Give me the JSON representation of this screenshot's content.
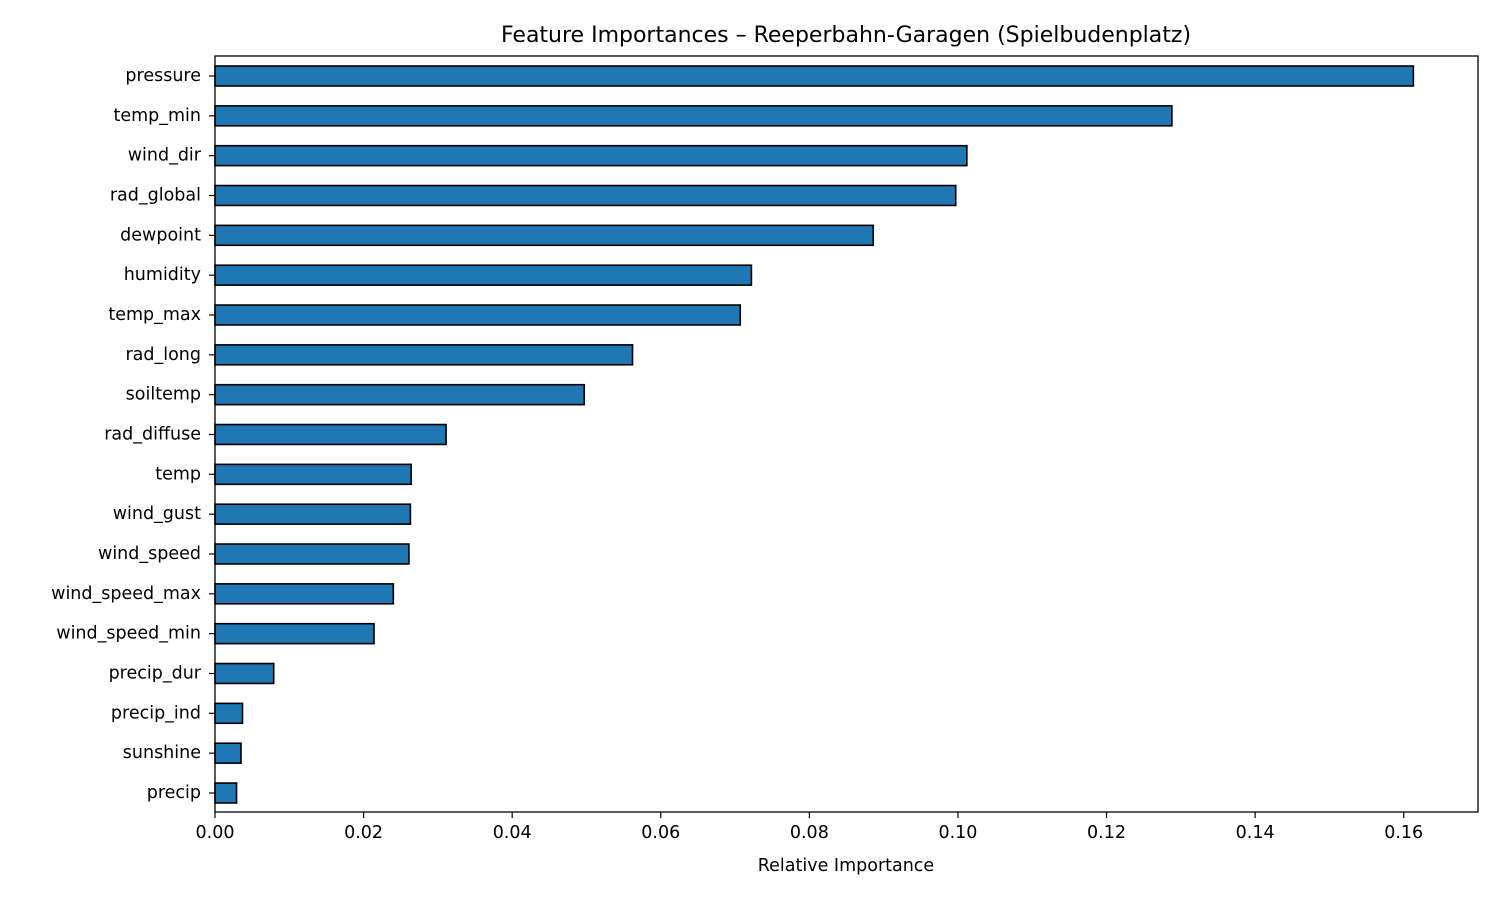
{
  "chart_data": {
    "type": "bar",
    "orientation": "horizontal",
    "title": "Feature Importances – Reeperbahn-Garagen (Spielbudenplatz)",
    "xlabel": "Relative Importance",
    "ylabel": "",
    "xlim": [
      0,
      0.17
    ],
    "xticks": [
      0.0,
      0.02,
      0.04,
      0.06,
      0.08,
      0.1,
      0.12,
      0.14,
      0.16
    ],
    "xtick_labels": [
      "0.00",
      "0.02",
      "0.04",
      "0.06",
      "0.08",
      "0.10",
      "0.12",
      "0.14",
      "0.16"
    ],
    "grid": false,
    "legend": null,
    "bar_color": "#1f77b4",
    "bar_edge_color": "#000000",
    "categories": [
      "pressure",
      "temp_min",
      "wind_dir",
      "rad_global",
      "dewpoint",
      "humidity",
      "temp_max",
      "rad_long",
      "soiltemp",
      "rad_diffuse",
      "temp",
      "wind_gust",
      "wind_speed",
      "wind_speed_max",
      "wind_speed_min",
      "precip_dur",
      "precip_ind",
      "sunshine",
      "precip"
    ],
    "values": [
      0.1613,
      0.1288,
      0.1012,
      0.0997,
      0.0886,
      0.0722,
      0.0707,
      0.0562,
      0.0497,
      0.0311,
      0.0264,
      0.0263,
      0.0261,
      0.024,
      0.0214,
      0.0079,
      0.0037,
      0.0035,
      0.0029
    ]
  }
}
